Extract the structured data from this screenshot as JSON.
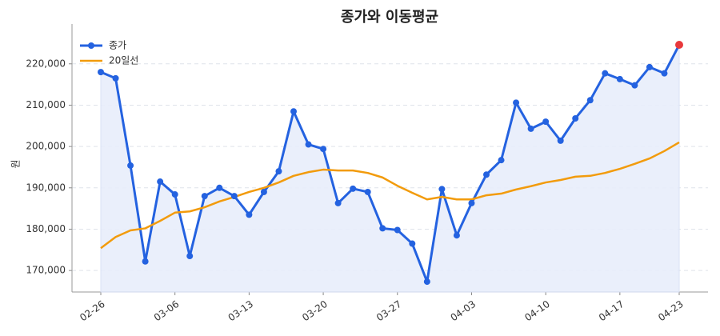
{
  "chart_data": {
    "type": "line",
    "title": "종가와 이동평균",
    "ylabel": "원",
    "categories": [
      "02-26",
      null,
      null,
      null,
      null,
      "03-06",
      null,
      null,
      null,
      null,
      "03-13",
      null,
      null,
      null,
      null,
      "03-20",
      null,
      null,
      null,
      null,
      "03-27",
      null,
      null,
      null,
      null,
      "04-03",
      null,
      null,
      null,
      null,
      "04-10",
      null,
      null,
      null,
      null,
      "04-17",
      null,
      null,
      null,
      "04-23"
    ],
    "series": [
      {
        "name": "종가",
        "color": "#2462e0",
        "marker": true,
        "fill": "#e8eefb",
        "values": [
          218000,
          216500,
          195400,
          172200,
          191500,
          188400,
          173500,
          188000,
          190000,
          188000,
          183500,
          189000,
          194000,
          208500,
          200500,
          199400,
          186300,
          189800,
          189000,
          180200,
          179800,
          176500,
          167300,
          189700,
          178500,
          186300,
          193200,
          196700,
          210600,
          204300,
          206000,
          201400,
          206800,
          211200,
          217700,
          216300,
          214800,
          219200,
          217700,
          224600
        ]
      },
      {
        "name": "20일선",
        "color": "#f29b0c",
        "marker": false,
        "values": [
          175400,
          178100,
          179700,
          180200,
          182000,
          184000,
          184300,
          185300,
          186700,
          187800,
          189000,
          190000,
          191300,
          192900,
          193800,
          194400,
          194200,
          194200,
          193600,
          192500,
          190500,
          188800,
          187200,
          187800,
          187200,
          187200,
          188200,
          188600,
          189600,
          190400,
          191300,
          191900,
          192700,
          192900,
          193600,
          194600,
          195800,
          197100,
          198900,
          201000
        ]
      }
    ],
    "last_point_color": "#e8393c",
    "ylim": [
      164800,
      227700
    ],
    "yticks": [
      {
        "value": 170000,
        "label": "170,000"
      },
      {
        "value": 180000,
        "label": "180,000"
      },
      {
        "value": 190000,
        "label": "190,000"
      },
      {
        "value": 200000,
        "label": "200,000"
      },
      {
        "value": 210000,
        "label": "210,000"
      },
      {
        "value": 220000,
        "label": "220,000"
      }
    ],
    "grid": true,
    "legend": "upper left"
  }
}
